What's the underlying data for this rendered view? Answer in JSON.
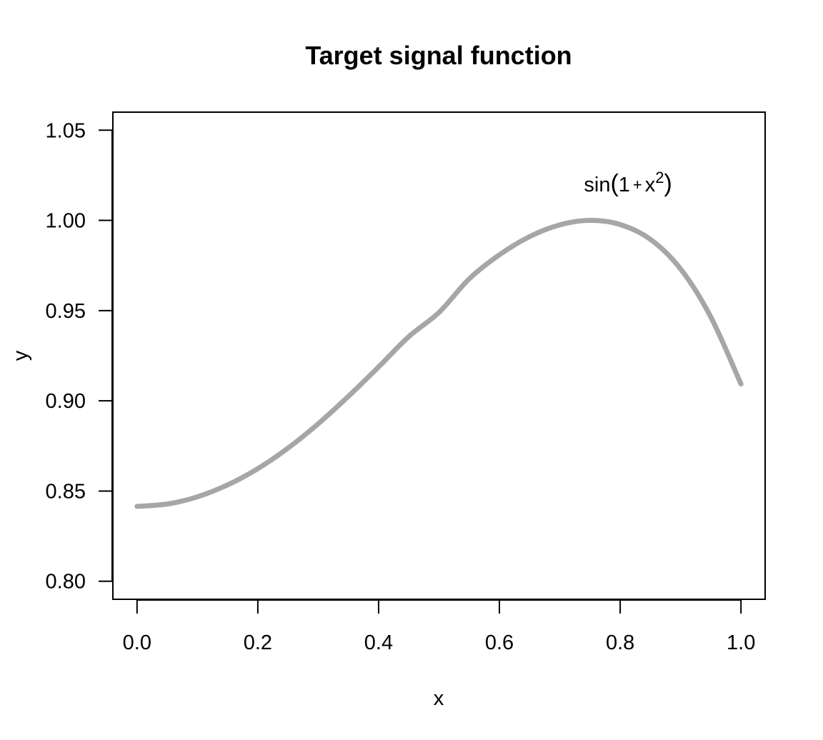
{
  "chart_data": {
    "type": "line",
    "title": "Target signal function",
    "xlabel": "x",
    "ylabel": "y",
    "xlim": [
      -0.04,
      1.04
    ],
    "ylim": [
      0.79,
      1.06
    ],
    "x_ticks": [
      0.0,
      0.2,
      0.4,
      0.6,
      0.8,
      1.0
    ],
    "x_tick_labels": [
      "0.0",
      "0.2",
      "0.4",
      "0.6",
      "0.8",
      "1.0"
    ],
    "y_ticks": [
      0.8,
      0.85,
      0.9,
      0.95,
      1.0,
      1.05
    ],
    "y_tick_labels": [
      "0.80",
      "0.85",
      "0.90",
      "0.95",
      "1.00",
      "1.05"
    ],
    "grid": false,
    "series": [
      {
        "color": "#a6a6a6",
        "x": [
          0.0,
          0.05,
          0.1,
          0.15,
          0.2,
          0.25,
          0.3,
          0.35,
          0.4,
          0.45,
          0.5,
          0.55,
          0.6,
          0.65,
          0.7,
          0.75,
          0.8,
          0.85,
          0.9,
          0.95,
          1.0
        ],
        "y": [
          0.8415,
          0.8428,
          0.8468,
          0.8534,
          0.8624,
          0.8738,
          0.8873,
          0.9025,
          0.9188,
          0.9356,
          0.949,
          0.9676,
          0.9809,
          0.991,
          0.9975,
          1.0,
          0.9977,
          0.9895,
          0.9731,
          0.9465,
          0.9093
        ]
      }
    ],
    "annotation": {
      "prefix": "sin",
      "open_paren": "(",
      "one": "1",
      "plus": "+",
      "var": "x",
      "exponent": "2",
      "close_paren": ")",
      "x": 0.74,
      "y": 1.02
    }
  }
}
